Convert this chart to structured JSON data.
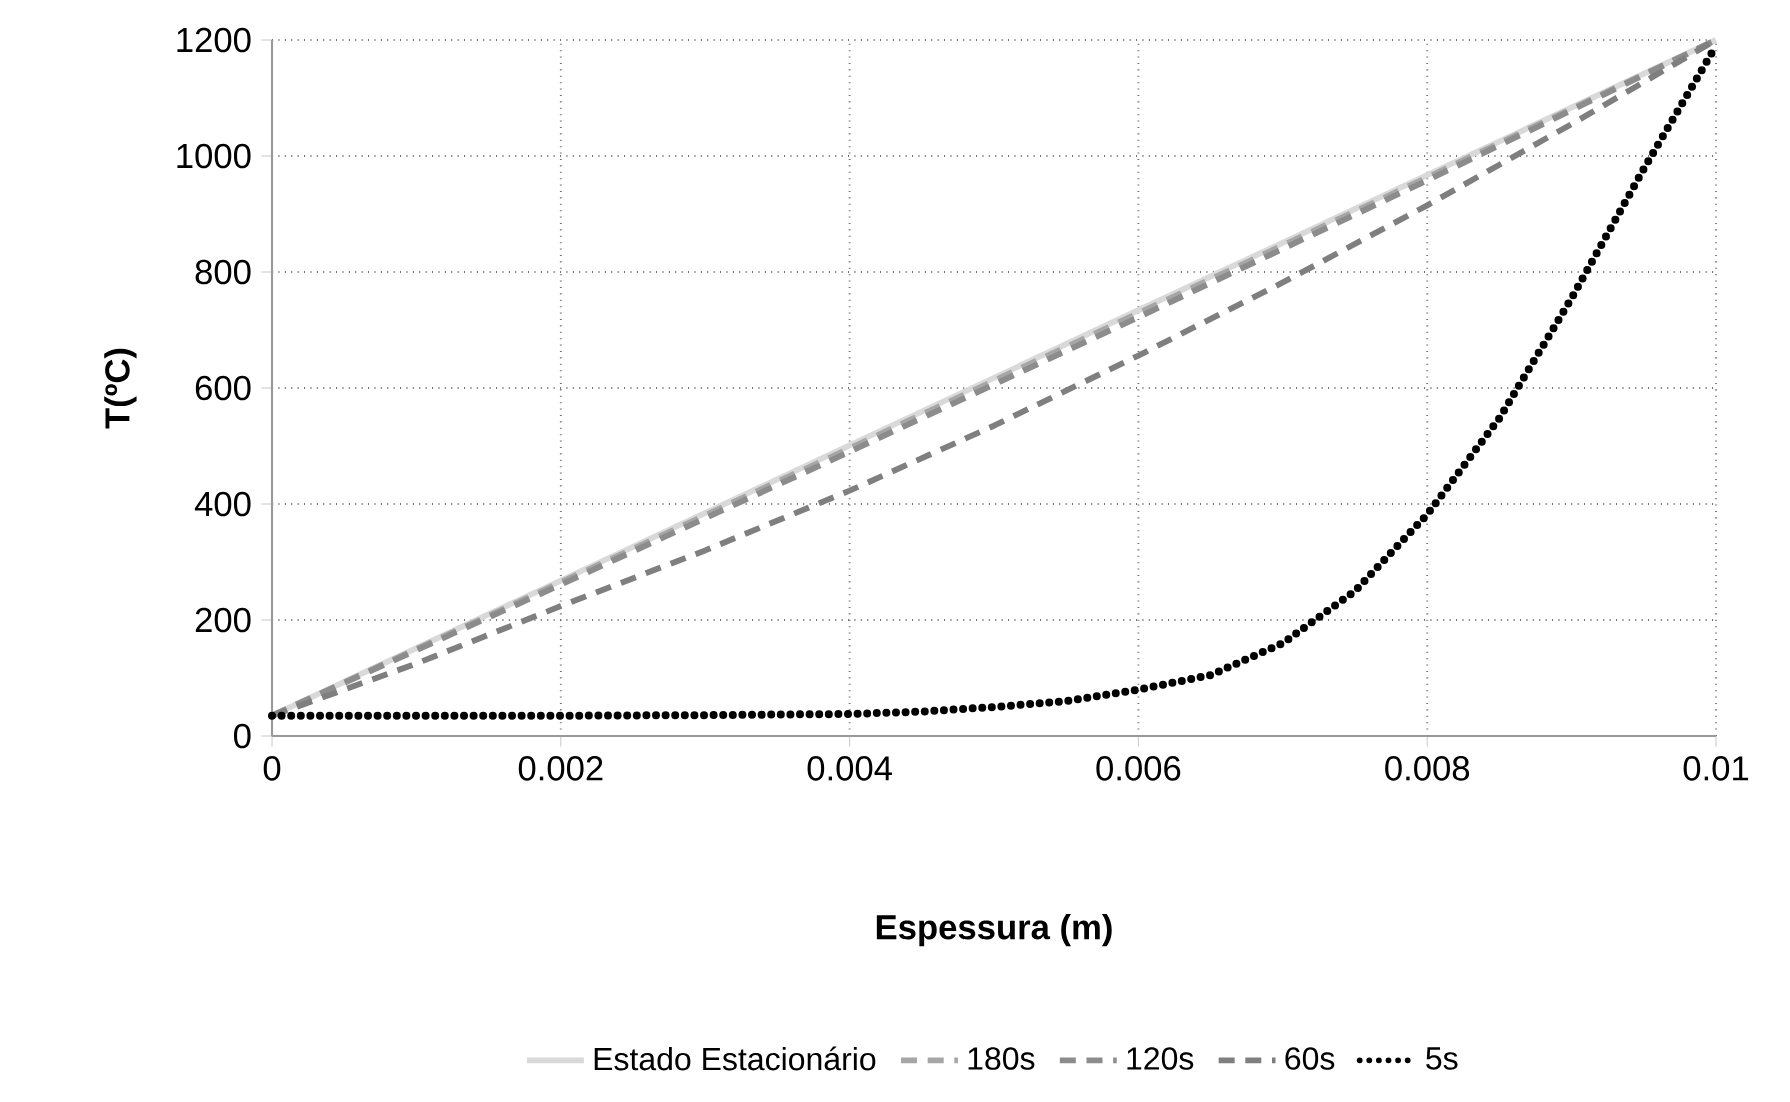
{
  "chart_data": {
    "type": "line",
    "xlabel": "Espessura (m)",
    "ylabel": "T(ºC)",
    "xlim": [
      0,
      0.01
    ],
    "ylim": [
      0,
      1200
    ],
    "xticks": [
      0,
      0.002,
      0.004,
      0.006,
      0.008,
      0.01
    ],
    "yticks": [
      0,
      200,
      400,
      600,
      800,
      1000,
      1200
    ],
    "grid": true,
    "legend": "bottom",
    "marker": "none",
    "series": [
      {
        "name": "Estado Estacionário",
        "color": "#d9d9d9",
        "line_style": "solid",
        "x": [
          0,
          0.002,
          0.004,
          0.006,
          0.008,
          0.01
        ],
        "values": [
          35,
          268,
          501,
          734,
          967,
          1200
        ]
      },
      {
        "name": "180s",
        "color": "#a6a6a6",
        "line_style": "dashed",
        "x": [
          0,
          0.002,
          0.004,
          0.006,
          0.008,
          0.01
        ],
        "values": [
          35,
          265,
          496,
          729,
          963,
          1200
        ]
      },
      {
        "name": "120s",
        "color": "#8c8c8c",
        "line_style": "dashed",
        "x": [
          0,
          0.002,
          0.004,
          0.006,
          0.008,
          0.01
        ],
        "values": [
          35,
          261,
          490,
          722,
          958,
          1200
        ]
      },
      {
        "name": "60s",
        "color": "#7f7f7f",
        "line_style": "dashed",
        "x": [
          0,
          0.001,
          0.002,
          0.003,
          0.004,
          0.005,
          0.006,
          0.007,
          0.008,
          0.009,
          0.01
        ],
        "values": [
          35,
          125,
          224,
          320,
          423,
          535,
          656,
          782,
          915,
          1055,
          1200
        ]
      },
      {
        "name": "5s",
        "color": "#000000",
        "line_style": "dotted",
        "x": [
          0,
          0.001,
          0.002,
          0.003,
          0.0035,
          0.004,
          0.0045,
          0.005,
          0.0055,
          0.006,
          0.0065,
          0.007,
          0.0075,
          0.008,
          0.0085,
          0.009,
          0.0095,
          0.01
        ],
        "values": [
          35,
          35,
          35,
          36,
          37,
          38,
          42,
          50,
          60,
          80,
          105,
          160,
          250,
          382,
          548,
          755,
          978,
          1190
        ]
      }
    ]
  }
}
